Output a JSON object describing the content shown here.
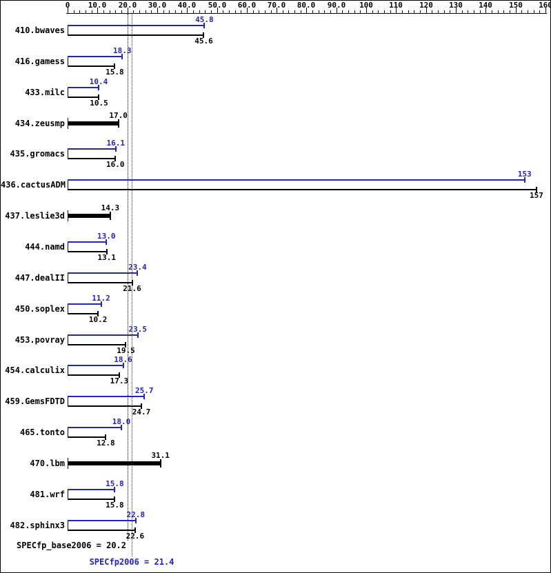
{
  "chart_data": {
    "type": "bar",
    "orientation": "horizontal",
    "title": "",
    "xlabel": "",
    "ylabel": "",
    "grid": false,
    "legend_position": "none",
    "colors": {
      "peak": "#2222cc",
      "base": "#000000"
    },
    "axis": {
      "min": 0,
      "max": 160,
      "major_step": 10,
      "minor_step": 2,
      "ticks": [
        {
          "value": 0,
          "label": "0"
        },
        {
          "value": 10,
          "label": "10.0"
        },
        {
          "value": 20,
          "label": "20.0"
        },
        {
          "value": 30,
          "label": "30.0"
        },
        {
          "value": 40,
          "label": "40.0"
        },
        {
          "value": 50,
          "label": "50.0"
        },
        {
          "value": 60,
          "label": "60.0"
        },
        {
          "value": 70,
          "label": "70.0"
        },
        {
          "value": 80,
          "label": "80.0"
        },
        {
          "value": 90,
          "label": "90.0"
        },
        {
          "value": 100,
          "label": "100"
        },
        {
          "value": 110,
          "label": "110"
        },
        {
          "value": 120,
          "label": "120"
        },
        {
          "value": 130,
          "label": "130"
        },
        {
          "value": 140,
          "label": "140"
        },
        {
          "value": 150,
          "label": "150"
        },
        {
          "value": 160,
          "label": "160"
        }
      ]
    },
    "benchmarks": [
      {
        "name": "410.bwaves",
        "peak": 45.8,
        "peak_label": "45.8",
        "base": 45.6,
        "base_label": "45.6",
        "bold": false
      },
      {
        "name": "416.gamess",
        "peak": 18.3,
        "peak_label": "18.3",
        "base": 15.8,
        "base_label": "15.8",
        "bold": false
      },
      {
        "name": "433.milc",
        "peak": 10.4,
        "peak_label": "10.4",
        "base": 10.5,
        "base_label": "10.5",
        "bold": false
      },
      {
        "name": "434.zeusmp",
        "peak": null,
        "peak_label": "",
        "base": 17.0,
        "base_label": "17.0",
        "bold": true
      },
      {
        "name": "435.gromacs",
        "peak": 16.1,
        "peak_label": "16.1",
        "base": 16.0,
        "base_label": "16.0",
        "bold": false
      },
      {
        "name": "436.cactusADM",
        "peak": 153,
        "peak_label": "153",
        "base": 157,
        "base_label": "157",
        "bold": false
      },
      {
        "name": "437.leslie3d",
        "peak": null,
        "peak_label": "",
        "base": 14.3,
        "base_label": "14.3",
        "bold": true
      },
      {
        "name": "444.namd",
        "peak": 13.0,
        "peak_label": "13.0",
        "base": 13.1,
        "base_label": "13.1",
        "bold": false
      },
      {
        "name": "447.dealII",
        "peak": 23.4,
        "peak_label": "23.4",
        "base": 21.6,
        "base_label": "21.6",
        "bold": false
      },
      {
        "name": "450.soplex",
        "peak": 11.2,
        "peak_label": "11.2",
        "base": 10.2,
        "base_label": "10.2",
        "bold": false
      },
      {
        "name": "453.povray",
        "peak": 23.5,
        "peak_label": "23.5",
        "base": 19.5,
        "base_label": "19.5",
        "bold": false
      },
      {
        "name": "454.calculix",
        "peak": 18.6,
        "peak_label": "18.6",
        "base": 17.3,
        "base_label": "17.3",
        "bold": false
      },
      {
        "name": "459.GemsFDTD",
        "peak": 25.7,
        "peak_label": "25.7",
        "base": 24.7,
        "base_label": "24.7",
        "bold": false
      },
      {
        "name": "465.tonto",
        "peak": 18.0,
        "peak_label": "18.0",
        "base": 12.8,
        "base_label": "12.8",
        "bold": false
      },
      {
        "name": "470.lbm",
        "peak": null,
        "peak_label": "",
        "base": 31.1,
        "base_label": "31.1",
        "bold": true
      },
      {
        "name": "481.wrf",
        "peak": 15.8,
        "peak_label": "15.8",
        "base": 15.8,
        "base_label": "15.8",
        "bold": false
      },
      {
        "name": "482.sphinx3",
        "peak": 22.8,
        "peak_label": "22.8",
        "base": 22.6,
        "base_label": "22.6",
        "bold": false
      }
    ],
    "summary": {
      "base_text": "SPECfp_base2006 = 20.2",
      "base_value": 20.2,
      "peak_text": "SPECfp2006 = 21.4",
      "peak_value": 21.4
    }
  }
}
